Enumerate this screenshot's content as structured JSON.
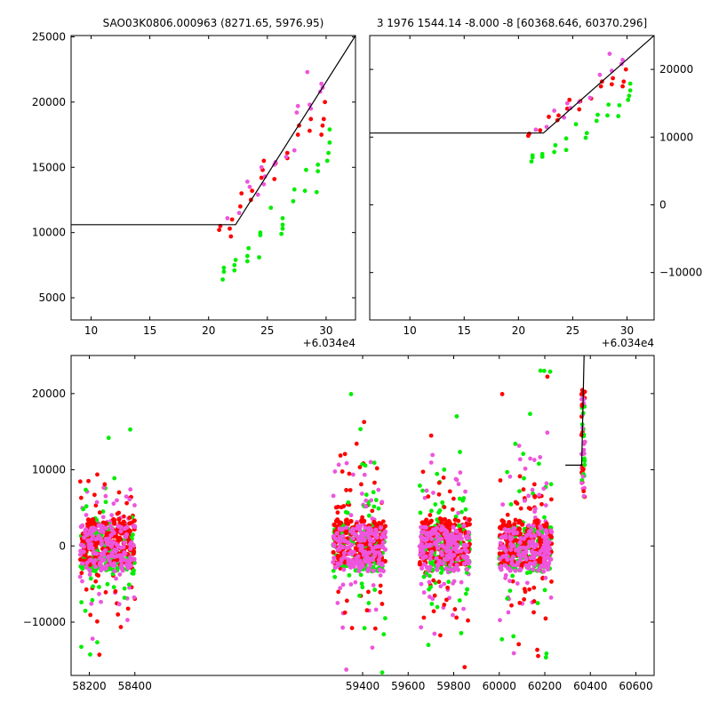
{
  "chart_data": [
    {
      "type": "scatter",
      "panel": "top-left",
      "title": "SAO03K0806.000963 (8271.65, 5976.95)",
      "xlim": [
        8.3,
        32.5
      ],
      "ylim": [
        3300,
        25100
      ],
      "x_ticks": [
        10,
        15,
        20,
        25,
        30
      ],
      "x_tick_labels": [
        "10",
        "15",
        "20",
        "25",
        "30"
      ],
      "y_ticks": [
        5000,
        10000,
        15000,
        20000,
        25000
      ],
      "y_tick_labels": [
        "5000",
        "10000",
        "15000",
        "20000",
        "25000"
      ],
      "x_offset_label": "+6.034e4",
      "y_axis_side": "left",
      "model_line": [
        [
          8.3,
          10600
        ],
        [
          22.3,
          10600
        ],
        [
          32.5,
          25100
        ]
      ],
      "series": [
        {
          "color": "#00ee00",
          "points": [
            [
              21.2,
              6400
            ],
            [
              21.3,
              7000
            ],
            [
              21.3,
              7300
            ],
            [
              22.2,
              7100
            ],
            [
              22.2,
              7500
            ],
            [
              22.3,
              7900
            ],
            [
              23.3,
              7800
            ],
            [
              23.3,
              8200
            ],
            [
              23.4,
              8800
            ],
            [
              24.3,
              8100
            ],
            [
              24.4,
              9800
            ],
            [
              24.4,
              10000
            ],
            [
              25.3,
              11900
            ],
            [
              26.2,
              9900
            ],
            [
              26.3,
              10300
            ],
            [
              26.3,
              10600
            ],
            [
              26.3,
              11100
            ],
            [
              27.2,
              12400
            ],
            [
              27.3,
              13300
            ],
            [
              28.2,
              13200
            ],
            [
              28.3,
              14800
            ],
            [
              29.2,
              13100
            ],
            [
              29.3,
              14700
            ],
            [
              29.3,
              15200
            ],
            [
              30.1,
              15500
            ],
            [
              30.2,
              16100
            ],
            [
              30.3,
              16900
            ],
            [
              30.3,
              17900
            ]
          ]
        },
        {
          "color": "#ff0000",
          "points": [
            [
              20.9,
              10200
            ],
            [
              21.0,
              10500
            ],
            [
              21.8,
              10300
            ],
            [
              21.9,
              9700
            ],
            [
              22.0,
              11000
            ],
            [
              22.7,
              12000
            ],
            [
              22.8,
              13000
            ],
            [
              23.6,
              12500
            ],
            [
              23.7,
              13200
            ],
            [
              24.5,
              14200
            ],
            [
              24.6,
              14800
            ],
            [
              24.7,
              15500
            ],
            [
              25.6,
              14100
            ],
            [
              25.7,
              15300
            ],
            [
              26.7,
              15700
            ],
            [
              26.7,
              16100
            ],
            [
              27.6,
              17500
            ],
            [
              27.7,
              18200
            ],
            [
              28.6,
              17800
            ],
            [
              28.7,
              18700
            ],
            [
              29.6,
              17500
            ],
            [
              29.7,
              18200
            ],
            [
              29.8,
              18700
            ],
            [
              29.9,
              20000
            ]
          ]
        },
        {
          "color": "#ee55dd",
          "points": [
            [
              21.6,
              11100
            ],
            [
              22.6,
              11500
            ],
            [
              23.3,
              13900
            ],
            [
              23.5,
              13500
            ],
            [
              24.2,
              12900
            ],
            [
              24.5,
              15000
            ],
            [
              24.7,
              13700
            ],
            [
              24.8,
              14300
            ],
            [
              25.6,
              15200
            ],
            [
              25.7,
              15400
            ],
            [
              26.6,
              15800
            ],
            [
              27.3,
              16300
            ],
            [
              27.5,
              19200
            ],
            [
              27.6,
              19700
            ],
            [
              28.4,
              22300
            ],
            [
              28.6,
              19800
            ],
            [
              28.7,
              19500
            ],
            [
              29.5,
              20800
            ],
            [
              29.6,
              21400
            ],
            [
              29.7,
              21100
            ]
          ]
        }
      ]
    },
    {
      "type": "scatter",
      "panel": "top-right",
      "title": "3 1976 1544.14 -8.000 -8 [60368.646, 60370.296]",
      "xlim": [
        6.3,
        32.5
      ],
      "ylim": [
        -17000,
        25000
      ],
      "x_ticks": [
        10,
        15,
        20,
        25,
        30
      ],
      "x_tick_labels": [
        "10",
        "15",
        "20",
        "25",
        "30"
      ],
      "y_ticks": [
        -10000,
        0,
        10000,
        20000
      ],
      "y_tick_labels": [
        "−10000",
        "0",
        "10000",
        "20000"
      ],
      "x_offset_label": "+6.034e4",
      "y_axis_side": "right",
      "model_line": [
        [
          6.3,
          10600
        ],
        [
          22.3,
          10600
        ],
        [
          32.5,
          25000
        ]
      ],
      "series": [
        {
          "color": "#00ee00",
          "points": [
            [
              21.2,
              6400
            ],
            [
              21.3,
              7000
            ],
            [
              21.3,
              7300
            ],
            [
              22.2,
              7100
            ],
            [
              22.2,
              7500
            ],
            [
              23.3,
              7800
            ],
            [
              23.4,
              8800
            ],
            [
              24.4,
              8100
            ],
            [
              24.4,
              9800
            ],
            [
              25.3,
              11900
            ],
            [
              26.2,
              9900
            ],
            [
              26.3,
              10600
            ],
            [
              27.2,
              12400
            ],
            [
              27.3,
              13300
            ],
            [
              28.2,
              13200
            ],
            [
              28.3,
              14800
            ],
            [
              29.2,
              13100
            ],
            [
              29.3,
              14700
            ],
            [
              30.1,
              15500
            ],
            [
              30.2,
              16100
            ],
            [
              30.3,
              16900
            ],
            [
              30.3,
              17900
            ]
          ]
        },
        {
          "color": "#ff0000",
          "points": [
            [
              20.9,
              10200
            ],
            [
              21.0,
              10500
            ],
            [
              22.0,
              11000
            ],
            [
              22.8,
              13000
            ],
            [
              23.6,
              12500
            ],
            [
              23.7,
              13200
            ],
            [
              24.5,
              14200
            ],
            [
              24.7,
              15500
            ],
            [
              25.6,
              14100
            ],
            [
              25.7,
              15300
            ],
            [
              26.7,
              15700
            ],
            [
              27.6,
              17500
            ],
            [
              27.7,
              18200
            ],
            [
              28.6,
              17800
            ],
            [
              28.7,
              18700
            ],
            [
              29.6,
              17500
            ],
            [
              29.7,
              18200
            ],
            [
              29.9,
              20000
            ]
          ]
        },
        {
          "color": "#ee55dd",
          "points": [
            [
              21.6,
              11100
            ],
            [
              22.6,
              11500
            ],
            [
              23.3,
              13900
            ],
            [
              24.2,
              12900
            ],
            [
              24.5,
              15000
            ],
            [
              24.8,
              14300
            ],
            [
              25.6,
              15200
            ],
            [
              26.6,
              15800
            ],
            [
              27.5,
              19200
            ],
            [
              28.4,
              22300
            ],
            [
              28.6,
              19800
            ],
            [
              29.5,
              20800
            ],
            [
              29.6,
              21400
            ]
          ]
        }
      ]
    },
    {
      "type": "scatter",
      "panel": "bottom",
      "title": "",
      "xlim": [
        58120,
        60680
      ],
      "ylim": [
        -17000,
        25000
      ],
      "x_ticks": [
        58200,
        58400,
        59400,
        59600,
        59800,
        60000,
        60200,
        60400,
        60600
      ],
      "x_tick_labels": [
        "58200",
        "58400",
        "59400",
        "59600",
        "59800",
        "60000",
        "60200",
        "60400",
        "60600"
      ],
      "y_ticks": [
        -10000,
        0,
        10000,
        20000
      ],
      "y_tick_labels": [
        "−10000",
        "0",
        "10000",
        "20000"
      ],
      "x_axis_breaks": [
        [
          58430,
          59270
        ]
      ],
      "model_line": [
        [
          60290,
          10600
        ],
        [
          60362,
          10600
        ],
        [
          60372.5,
          25000
        ]
      ],
      "seasons": [
        {
          "x_range": [
            58160,
            58400
          ],
          "scatter_spread": 14000
        },
        {
          "x_range": [
            59270,
            59500
          ],
          "scatter_spread": 16000
        },
        {
          "x_range": [
            59650,
            59870
          ],
          "scatter_spread": 15000
        },
        {
          "x_range": [
            60000,
            60230
          ],
          "scatter_spread": 16000
        }
      ],
      "core_band": [
        -3000,
        3000
      ],
      "last_night": {
        "x": 60368.6,
        "y_range": [
          6400,
          22300
        ]
      },
      "series_colors": [
        "#00ee00",
        "#ff0000",
        "#ee55dd"
      ]
    }
  ]
}
